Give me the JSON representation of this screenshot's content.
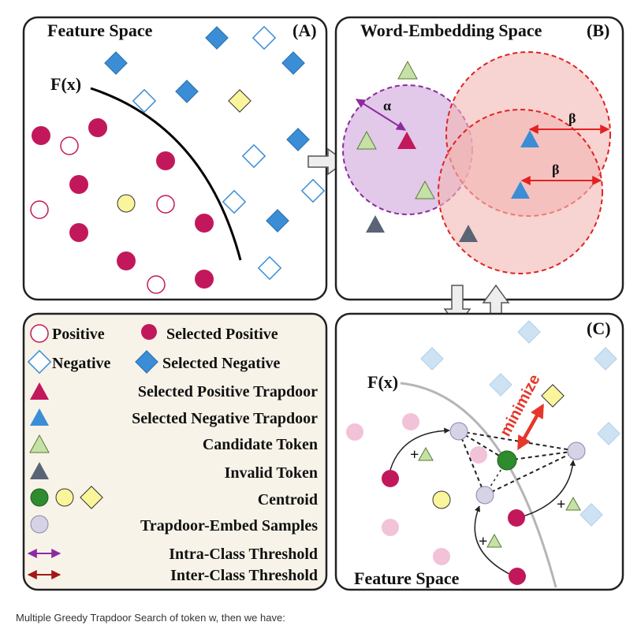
{
  "panels": {
    "a": {
      "title": "Feature Space",
      "tag": "(A)",
      "func": "F(x)"
    },
    "b": {
      "title": "Word-Embedding Space",
      "tag": "(B)",
      "alpha": "α",
      "beta1": "β",
      "beta2": "β"
    },
    "c": {
      "tag": "(C)",
      "func": "F(x)",
      "minimize": "minimize",
      "footer": "Feature Space",
      "plus": "+"
    }
  },
  "legend": {
    "positive": "Positive",
    "selected_positive": "Selected Positive",
    "negative": "Negative",
    "selected_negative": "Selected Negative",
    "selected_positive_trapdoor": "Selected Positive Trapdoor",
    "selected_negative_trapdoor": "Selected Negative Trapdoor",
    "candidate_token": "Candidate Token",
    "invalid_token": "Invalid Token",
    "centroid": "Centroid",
    "trapdoor_embed_samples": "Trapdoor-Embed Samples",
    "intra_class_threshold": "Intra-Class Threshold",
    "inter_class_threshold": "Inter-Class Threshold"
  },
  "colors": {
    "positive": "#c2185b",
    "negative": "#3b8ed6",
    "candidate": "#c5e1a5",
    "invalid": "#5b6475",
    "centroid": "#2e8b2e",
    "yellow": "#faf59a",
    "sample": "#d6d3e6",
    "intra": "#8e2aa0",
    "inter": "#a31818",
    "beta_arrow": "#e22222"
  },
  "caption": "Multiple Greedy Trapdoor Search of token w, then we have:"
}
